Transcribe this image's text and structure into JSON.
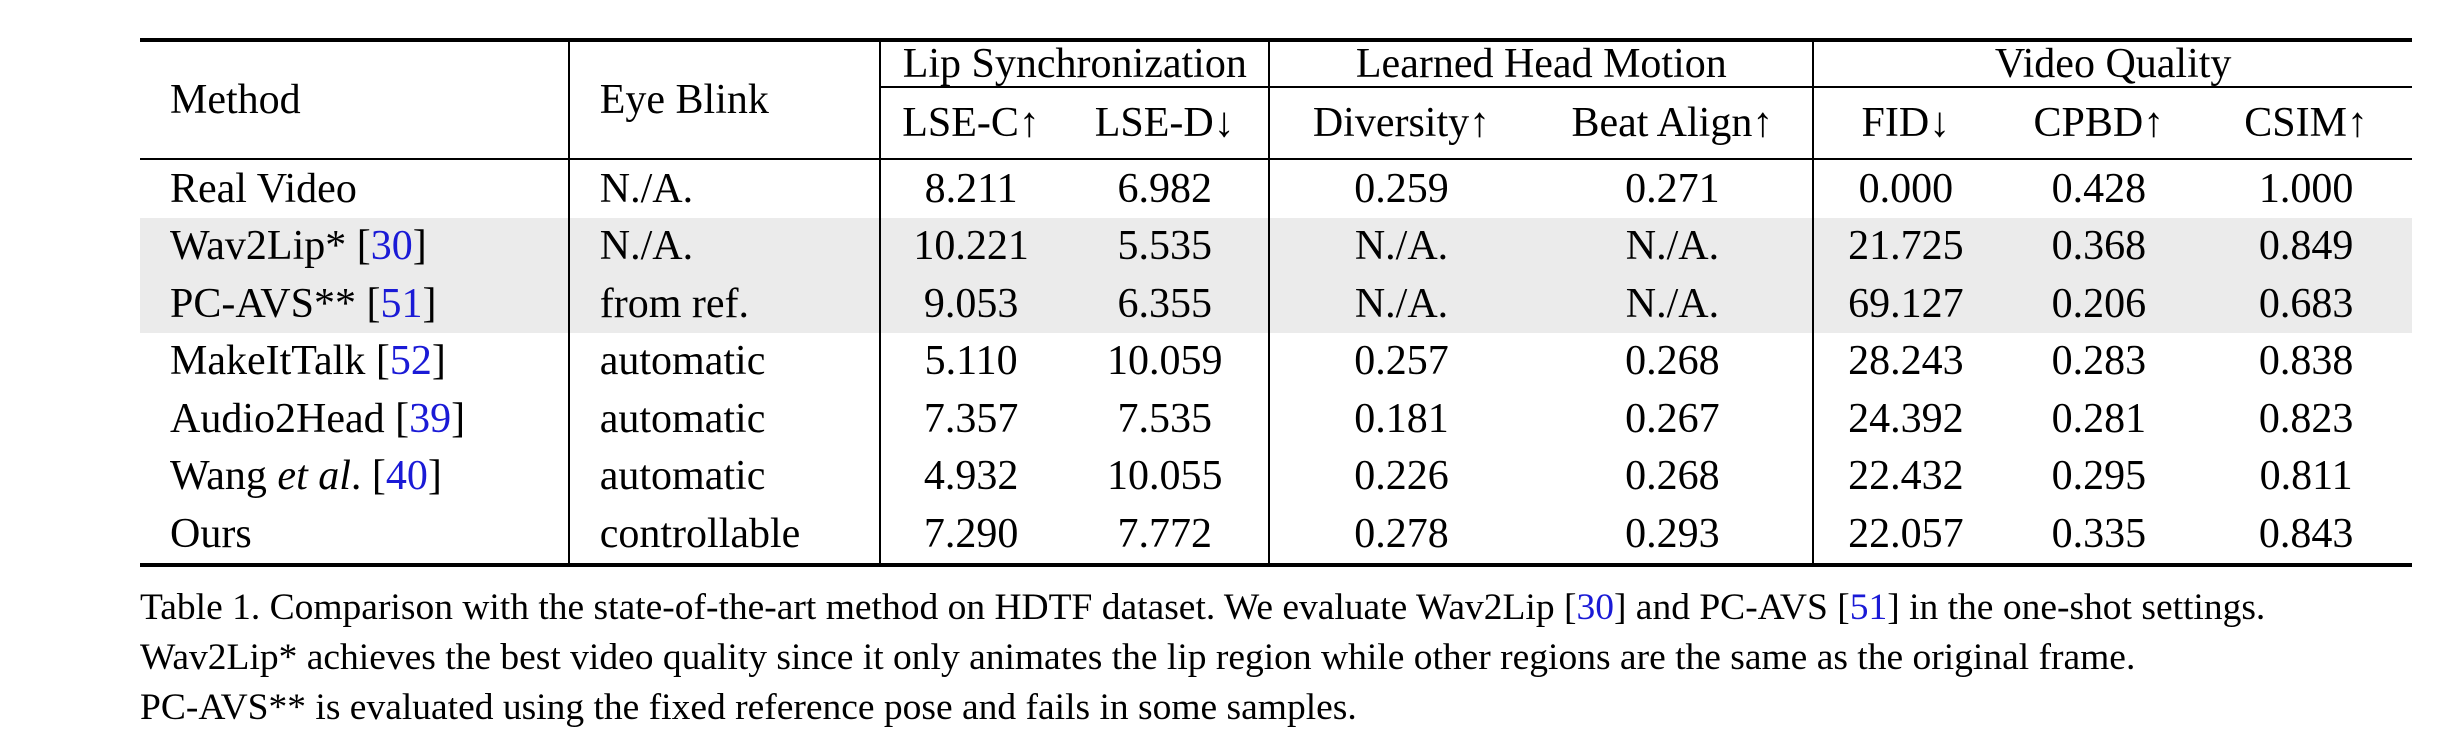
{
  "table": {
    "headers": {
      "method": "Method",
      "eye_blink": "Eye Blink",
      "groups": [
        "Lip Synchronization",
        "Learned Head Motion",
        "Video Quality"
      ],
      "metrics": [
        "LSE-C↑",
        "LSE-D↓",
        "Diversity↑",
        "Beat Align↑",
        "FID↓",
        "CPBD↑",
        "CSIM↑"
      ]
    },
    "rows": [
      {
        "method": "Real Video",
        "cite": "",
        "blink": "N./A.",
        "values": [
          "8.211",
          "6.982",
          "0.259",
          "0.271",
          "0.000",
          "0.428",
          "1.000"
        ]
      },
      {
        "method": "Wav2Lip* [",
        "cite": "30",
        "close": "]",
        "blink": "N./A.",
        "values": [
          "10.221",
          "5.535",
          "N./A.",
          "N./A.",
          "21.725",
          "0.368",
          "0.849"
        ]
      },
      {
        "method": "PC-AVS** [",
        "cite": "51",
        "close": "]",
        "blink": "from ref.",
        "values": [
          "9.053",
          "6.355",
          "N./A.",
          "N./A.",
          "69.127",
          "0.206",
          "0.683"
        ]
      },
      {
        "method": "MakeItTalk [",
        "cite": "52",
        "close": "]",
        "blink": "automatic",
        "values": [
          "5.110",
          "10.059",
          "0.257",
          "0.268",
          "28.243",
          "0.283",
          "0.838"
        ]
      },
      {
        "method": "Audio2Head [",
        "cite": "39",
        "close": "]",
        "blink": "automatic",
        "values": [
          "7.357",
          "7.535",
          "0.181",
          "0.267",
          "24.392",
          "0.281",
          "0.823"
        ]
      },
      {
        "method_pre": "Wang ",
        "method_it": "et al",
        "method_post": ". [",
        "cite": "40",
        "close": "]",
        "blink": "automatic",
        "values": [
          "4.932",
          "10.055",
          "0.226",
          "0.268",
          "22.432",
          "0.295",
          "0.811"
        ]
      },
      {
        "method": "Ours",
        "cite": "",
        "blink": "controllable",
        "values": [
          "7.290",
          "7.772",
          "0.278",
          "0.293",
          "22.057",
          "0.335",
          "0.843"
        ]
      }
    ]
  },
  "caption": {
    "l1_a": "Table 1. Comparison with the state-of-the-art method on HDTF dataset. We evaluate Wav2Lip [",
    "l1_cite1": "30",
    "l1_b": "] and PC-AVS [",
    "l1_cite2": "51",
    "l1_c": "] in the one-shot settings.",
    "l2": "Wav2Lip* achieves the best video quality since it only animates the lip region while other regions are the same as the original frame.",
    "l3": "PC-AVS** is evaluated using the fixed reference pose and fails in some samples."
  }
}
